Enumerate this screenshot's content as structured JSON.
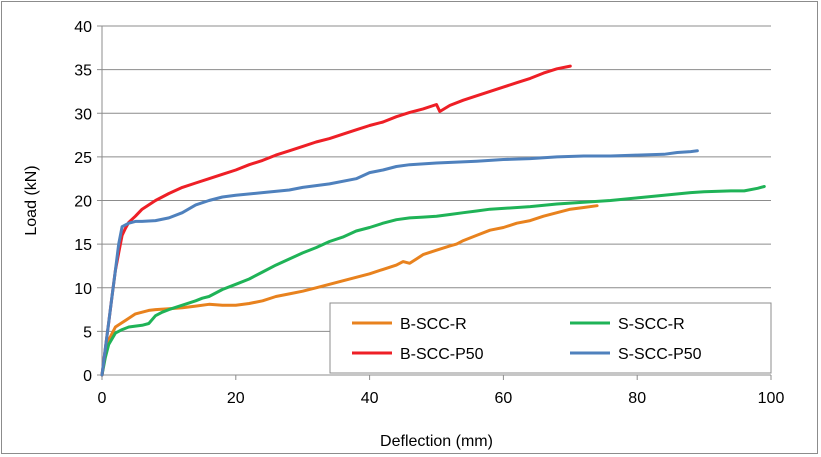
{
  "chart_data": {
    "type": "line",
    "title": "",
    "xlabel": "Deflection (mm)",
    "ylabel": "Load (kN)",
    "xlim": [
      0,
      100
    ],
    "ylim": [
      0,
      40
    ],
    "xticks": [
      0,
      20,
      40,
      60,
      80,
      100
    ],
    "yticks": [
      0,
      5,
      10,
      15,
      20,
      25,
      30,
      35,
      40
    ],
    "grid": "horizontal",
    "legend_position": "bottom-right",
    "series": [
      {
        "name": "B-SCC-R",
        "color": "#e8821e",
        "points": [
          [
            0,
            0
          ],
          [
            0.5,
            2.5
          ],
          [
            1,
            4
          ],
          [
            2,
            5.5
          ],
          [
            3,
            6
          ],
          [
            4,
            6.5
          ],
          [
            5,
            7
          ],
          [
            6,
            7.2
          ],
          [
            7,
            7.4
          ],
          [
            8,
            7.5
          ],
          [
            10,
            7.6
          ],
          [
            12,
            7.7
          ],
          [
            14,
            7.9
          ],
          [
            16,
            8.1
          ],
          [
            18,
            8
          ],
          [
            20,
            8
          ],
          [
            22,
            8.2
          ],
          [
            24,
            8.5
          ],
          [
            26,
            9
          ],
          [
            28,
            9.3
          ],
          [
            30,
            9.6
          ],
          [
            32,
            10
          ],
          [
            34,
            10.4
          ],
          [
            36,
            10.8
          ],
          [
            38,
            11.2
          ],
          [
            40,
            11.6
          ],
          [
            42,
            12.1
          ],
          [
            44,
            12.6
          ],
          [
            45,
            13
          ],
          [
            46,
            12.8
          ],
          [
            47,
            13.3
          ],
          [
            48,
            13.8
          ],
          [
            50,
            14.3
          ],
          [
            52,
            14.8
          ],
          [
            53,
            15
          ],
          [
            54,
            15.4
          ],
          [
            56,
            16
          ],
          [
            58,
            16.6
          ],
          [
            60,
            16.9
          ],
          [
            62,
            17.4
          ],
          [
            64,
            17.7
          ],
          [
            66,
            18.2
          ],
          [
            68,
            18.6
          ],
          [
            70,
            19
          ],
          [
            72,
            19.2
          ],
          [
            74,
            19.4
          ]
        ]
      },
      {
        "name": "S-SCC-R",
        "color": "#1fb357",
        "points": [
          [
            0,
            0
          ],
          [
            0.5,
            2
          ],
          [
            1,
            3.5
          ],
          [
            2,
            4.8
          ],
          [
            3,
            5.2
          ],
          [
            4,
            5.5
          ],
          [
            5,
            5.6
          ],
          [
            6,
            5.7
          ],
          [
            7,
            5.9
          ],
          [
            8,
            6.8
          ],
          [
            9,
            7.2
          ],
          [
            10,
            7.5
          ],
          [
            12,
            8
          ],
          [
            14,
            8.5
          ],
          [
            15,
            8.8
          ],
          [
            16,
            9
          ],
          [
            18,
            9.8
          ],
          [
            20,
            10.4
          ],
          [
            22,
            11
          ],
          [
            24,
            11.8
          ],
          [
            26,
            12.6
          ],
          [
            28,
            13.3
          ],
          [
            30,
            14
          ],
          [
            32,
            14.6
          ],
          [
            34,
            15.3
          ],
          [
            36,
            15.8
          ],
          [
            38,
            16.5
          ],
          [
            40,
            16.9
          ],
          [
            42,
            17.4
          ],
          [
            44,
            17.8
          ],
          [
            46,
            18
          ],
          [
            48,
            18.1
          ],
          [
            50,
            18.2
          ],
          [
            52,
            18.4
          ],
          [
            54,
            18.6
          ],
          [
            56,
            18.8
          ],
          [
            58,
            19
          ],
          [
            60,
            19.1
          ],
          [
            64,
            19.3
          ],
          [
            68,
            19.6
          ],
          [
            72,
            19.8
          ],
          [
            76,
            20
          ],
          [
            80,
            20.3
          ],
          [
            84,
            20.6
          ],
          [
            88,
            20.9
          ],
          [
            90,
            21
          ],
          [
            94,
            21.1
          ],
          [
            96,
            21.1
          ],
          [
            98,
            21.4
          ],
          [
            99,
            21.6
          ]
        ]
      },
      {
        "name": "B-SCC-P50",
        "color": "#ee1f26",
        "points": [
          [
            0,
            0
          ],
          [
            0.5,
            3
          ],
          [
            1,
            6
          ],
          [
            1.5,
            9
          ],
          [
            2,
            12
          ],
          [
            2.5,
            14
          ],
          [
            3,
            16
          ],
          [
            3.5,
            16.8
          ],
          [
            4,
            17.5
          ],
          [
            5,
            18.2
          ],
          [
            6,
            19
          ],
          [
            7,
            19.5
          ],
          [
            8,
            20
          ],
          [
            10,
            20.8
          ],
          [
            12,
            21.5
          ],
          [
            14,
            22
          ],
          [
            16,
            22.5
          ],
          [
            18,
            23
          ],
          [
            20,
            23.5
          ],
          [
            22,
            24.1
          ],
          [
            24,
            24.6
          ],
          [
            26,
            25.2
          ],
          [
            28,
            25.7
          ],
          [
            30,
            26.2
          ],
          [
            32,
            26.7
          ],
          [
            34,
            27.1
          ],
          [
            36,
            27.6
          ],
          [
            38,
            28.1
          ],
          [
            40,
            28.6
          ],
          [
            42,
            29
          ],
          [
            44,
            29.6
          ],
          [
            46,
            30.1
          ],
          [
            48,
            30.5
          ],
          [
            50,
            31
          ],
          [
            50.5,
            30.2
          ],
          [
            52,
            30.9
          ],
          [
            54,
            31.5
          ],
          [
            56,
            32
          ],
          [
            58,
            32.5
          ],
          [
            60,
            33
          ],
          [
            62,
            33.5
          ],
          [
            64,
            34
          ],
          [
            66,
            34.6
          ],
          [
            68,
            35.1
          ],
          [
            70,
            35.4
          ]
        ]
      },
      {
        "name": "S-SCC-P50",
        "color": "#4f81bd",
        "points": [
          [
            0,
            0
          ],
          [
            0.5,
            3
          ],
          [
            1,
            6
          ],
          [
            1.5,
            9
          ],
          [
            2,
            12
          ],
          [
            2.5,
            15
          ],
          [
            3,
            17
          ],
          [
            4,
            17.4
          ],
          [
            5,
            17.6
          ],
          [
            6,
            17.6
          ],
          [
            8,
            17.7
          ],
          [
            10,
            18
          ],
          [
            12,
            18.6
          ],
          [
            14,
            19.5
          ],
          [
            16,
            20
          ],
          [
            18,
            20.4
          ],
          [
            20,
            20.6
          ],
          [
            24,
            20.9
          ],
          [
            28,
            21.2
          ],
          [
            30,
            21.5
          ],
          [
            34,
            21.9
          ],
          [
            38,
            22.5
          ],
          [
            40,
            23.2
          ],
          [
            42,
            23.5
          ],
          [
            44,
            23.9
          ],
          [
            46,
            24.1
          ],
          [
            50,
            24.3
          ],
          [
            56,
            24.5
          ],
          [
            60,
            24.7
          ],
          [
            64,
            24.8
          ],
          [
            68,
            25
          ],
          [
            72,
            25.1
          ],
          [
            76,
            25.1
          ],
          [
            80,
            25.2
          ],
          [
            84,
            25.3
          ],
          [
            86,
            25.5
          ],
          [
            88,
            25.6
          ],
          [
            89,
            25.7
          ]
        ]
      }
    ]
  }
}
